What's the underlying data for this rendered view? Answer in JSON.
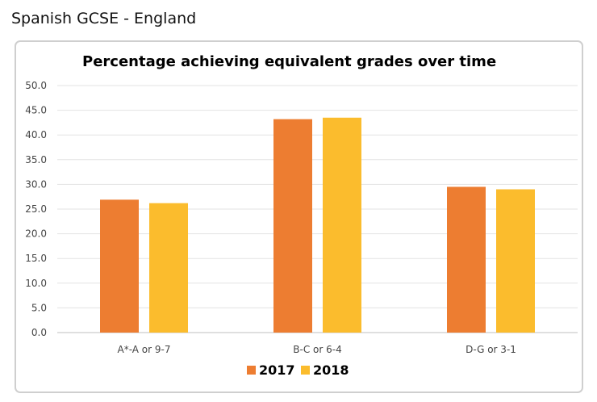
{
  "page": {
    "title": "Spanish GCSE - England"
  },
  "chart_data": {
    "type": "bar",
    "title": "Percentage achieving equivalent grades over time",
    "xlabel": "",
    "ylabel": "",
    "categories": [
      "A*-A or 9-7",
      "B-C or 6-4",
      "D-G or 3-1"
    ],
    "series": [
      {
        "name": "2017",
        "color": "#ed7d31",
        "values": [
          26.9,
          43.2,
          29.5
        ]
      },
      {
        "name": "2018",
        "color": "#fbbc2d",
        "values": [
          26.2,
          43.5,
          29.0
        ]
      }
    ],
    "ylim": [
      0,
      50
    ],
    "yticks": [
      "0.0",
      "5.0",
      "10.0",
      "15.0",
      "20.0",
      "25.0",
      "30.0",
      "35.0",
      "40.0",
      "45.0",
      "50.0"
    ],
    "grid": true,
    "legend_position": "bottom"
  }
}
